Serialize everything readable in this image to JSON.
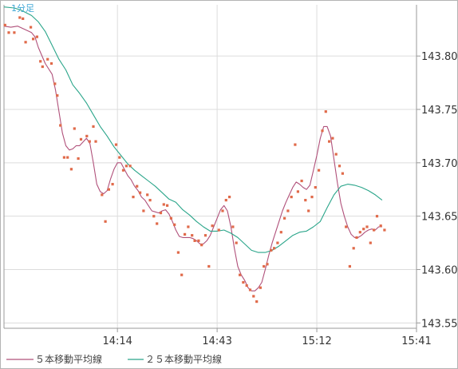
{
  "period_label": "1分足",
  "legend": [
    {
      "label": "５本移動平均線",
      "color": "#b0507a"
    },
    {
      "label": "２５本移動平均線",
      "color": "#2aa58a"
    }
  ],
  "colors": {
    "price_points": "#e06a4a",
    "period_label": "#3fa7d6"
  },
  "chart_data": {
    "type": "line",
    "x_tick_labels": [
      "14:14",
      "14:43",
      "15:12",
      "15:41"
    ],
    "x_tick_minutes": [
      33,
      62,
      91,
      120
    ],
    "x_range_minutes": [
      0,
      120
    ],
    "y_tick_labels": [
      "143.80",
      "143.75",
      "143.70",
      "143.65",
      "143.60",
      "143.55"
    ],
    "ylim": [
      143.545,
      143.848
    ],
    "grid": true,
    "legend_position": "bottom-left",
    "price_points": [
      [
        0.3,
        143.829
      ],
      [
        1.4,
        143.822
      ],
      [
        3.0,
        143.822
      ],
      [
        4.6,
        143.836
      ],
      [
        5.5,
        143.835
      ],
      [
        6.3,
        143.813
      ],
      [
        7.8,
        143.827
      ],
      [
        8.5,
        143.816
      ],
      [
        9.6,
        143.818
      ],
      [
        10.6,
        143.795
      ],
      [
        11.2,
        143.79
      ],
      [
        12.7,
        143.797
      ],
      [
        13.8,
        143.793
      ],
      [
        14.8,
        143.774
      ],
      [
        15.5,
        143.763
      ],
      [
        16.4,
        143.735
      ],
      [
        17.5,
        143.705
      ],
      [
        18.5,
        143.705
      ],
      [
        19.6,
        143.694
      ],
      [
        20.5,
        143.732
      ],
      [
        21.6,
        143.704
      ],
      [
        22.4,
        143.722
      ],
      [
        24.1,
        143.725
      ],
      [
        24.9,
        143.72
      ],
      [
        26.0,
        143.734
      ],
      [
        26.7,
        143.72
      ],
      [
        28.5,
        143.67
      ],
      [
        29.5,
        143.645
      ],
      [
        30.5,
        143.675
      ],
      [
        31.6,
        143.68
      ],
      [
        32.6,
        143.717
      ],
      [
        33.6,
        143.705
      ],
      [
        34.7,
        143.693
      ],
      [
        35.6,
        143.697
      ],
      [
        36.7,
        143.697
      ],
      [
        37.6,
        143.668
      ],
      [
        38.7,
        143.678
      ],
      [
        39.6,
        143.672
      ],
      [
        40.6,
        143.655
      ],
      [
        41.7,
        143.67
      ],
      [
        42.5,
        143.665
      ],
      [
        43.6,
        143.65
      ],
      [
        44.5,
        143.643
      ],
      [
        45.6,
        143.653
      ],
      [
        46.5,
        143.661
      ],
      [
        47.5,
        143.66
      ],
      [
        48.6,
        143.648
      ],
      [
        49.6,
        143.642
      ],
      [
        50.7,
        143.616
      ],
      [
        51.7,
        143.595
      ],
      [
        52.6,
        143.633
      ],
      [
        53.6,
        143.64
      ],
      [
        54.7,
        143.632
      ],
      [
        55.5,
        143.627
      ],
      [
        56.6,
        143.627
      ],
      [
        57.5,
        143.623
      ],
      [
        58.6,
        143.632
      ],
      [
        59.6,
        143.603
      ],
      [
        60.6,
        143.641
      ],
      [
        62.5,
        143.637
      ],
      [
        63.6,
        143.655
      ],
      [
        64.6,
        143.665
      ],
      [
        65.6,
        143.668
      ],
      [
        66.6,
        143.64
      ],
      [
        67.6,
        143.625
      ],
      [
        68.6,
        143.595
      ],
      [
        69.6,
        143.588
      ],
      [
        70.6,
        143.585
      ],
      [
        71.6,
        143.581
      ],
      [
        72.6,
        143.575
      ],
      [
        73.5,
        143.57
      ],
      [
        74.6,
        143.583
      ],
      [
        75.6,
        143.603
      ],
      [
        76.6,
        143.605
      ],
      [
        77.7,
        143.618
      ],
      [
        78.6,
        143.62
      ],
      [
        79.6,
        143.625
      ],
      [
        80.6,
        143.635
      ],
      [
        81.6,
        143.648
      ],
      [
        82.6,
        143.655
      ],
      [
        83.6,
        143.668
      ],
      [
        84.7,
        143.717
      ],
      [
        85.5,
        143.673
      ],
      [
        86.6,
        143.683
      ],
      [
        87.7,
        143.665
      ],
      [
        88.6,
        143.655
      ],
      [
        89.6,
        143.668
      ],
      [
        90.6,
        143.677
      ],
      [
        91.6,
        143.693
      ],
      [
        92.6,
        143.73
      ],
      [
        93.6,
        143.748
      ],
      [
        94.6,
        143.72
      ],
      [
        95.6,
        143.723
      ],
      [
        96.6,
        143.708
      ],
      [
        97.6,
        143.697
      ],
      [
        98.5,
        143.69
      ],
      [
        99.5,
        143.64
      ],
      [
        100.6,
        143.603
      ],
      [
        101.7,
        143.62
      ],
      [
        102.6,
        143.63
      ],
      [
        103.6,
        143.635
      ],
      [
        104.6,
        143.638
      ],
      [
        105.6,
        143.64
      ],
      [
        106.6,
        143.625
      ],
      [
        107.6,
        143.637
      ],
      [
        108.5,
        143.65
      ],
      [
        109.6,
        143.641
      ],
      [
        110.7,
        143.637
      ]
    ],
    "series": [
      {
        "name": "５本移動平均線",
        "values": [
          [
            0,
            143.828
          ],
          [
            2,
            143.827
          ],
          [
            4,
            143.828
          ],
          [
            6,
            143.825
          ],
          [
            8,
            143.822
          ],
          [
            9,
            143.818
          ],
          [
            10,
            143.808
          ],
          [
            12,
            143.793
          ],
          [
            14,
            143.783
          ],
          [
            15,
            143.768
          ],
          [
            16,
            143.748
          ],
          [
            17,
            143.728
          ],
          [
            18,
            143.716
          ],
          [
            19,
            143.712
          ],
          [
            20,
            143.713
          ],
          [
            21,
            143.716
          ],
          [
            22,
            143.716
          ],
          [
            24,
            143.723
          ],
          [
            25,
            143.718
          ],
          [
            26,
            143.7
          ],
          [
            27,
            143.68
          ],
          [
            28,
            143.673
          ],
          [
            29,
            143.671
          ],
          [
            30,
            143.674
          ],
          [
            31,
            143.685
          ],
          [
            32,
            143.694
          ],
          [
            33,
            143.7
          ],
          [
            34,
            143.7
          ],
          [
            35,
            143.694
          ],
          [
            36,
            143.688
          ],
          [
            37,
            143.684
          ],
          [
            38,
            143.678
          ],
          [
            39,
            143.674
          ],
          [
            40,
            143.668
          ],
          [
            41,
            143.665
          ],
          [
            42,
            143.66
          ],
          [
            43,
            143.655
          ],
          [
            44,
            143.654
          ],
          [
            45,
            143.653
          ],
          [
            46,
            143.655
          ],
          [
            47,
            143.656
          ],
          [
            48,
            143.652
          ],
          [
            49,
            143.645
          ],
          [
            50,
            143.637
          ],
          [
            51,
            143.631
          ],
          [
            52,
            143.63
          ],
          [
            53,
            143.63
          ],
          [
            54,
            143.63
          ],
          [
            55,
            143.629
          ],
          [
            56,
            143.627
          ],
          [
            57,
            143.624
          ],
          [
            58,
            143.624
          ],
          [
            59,
            143.627
          ],
          [
            60,
            143.632
          ],
          [
            61,
            143.64
          ],
          [
            62,
            143.648
          ],
          [
            63,
            143.656
          ],
          [
            64,
            143.66
          ],
          [
            65,
            143.655
          ],
          [
            66,
            143.64
          ],
          [
            67,
            143.62
          ],
          [
            68,
            143.603
          ],
          [
            69,
            143.595
          ],
          [
            70,
            143.59
          ],
          [
            71,
            143.583
          ],
          [
            72,
            143.58
          ],
          [
            73,
            143.58
          ],
          [
            74,
            143.583
          ],
          [
            75,
            143.588
          ],
          [
            76,
            143.6
          ],
          [
            77,
            143.613
          ],
          [
            78,
            143.625
          ],
          [
            79,
            143.635
          ],
          [
            80,
            143.645
          ],
          [
            81,
            143.655
          ],
          [
            82,
            143.663
          ],
          [
            83,
            143.67
          ],
          [
            84,
            143.677
          ],
          [
            85,
            143.682
          ],
          [
            86,
            143.68
          ],
          [
            87,
            143.677
          ],
          [
            88,
            143.675
          ],
          [
            89,
            143.679
          ],
          [
            90,
            143.693
          ],
          [
            91,
            143.707
          ],
          [
            92,
            143.723
          ],
          [
            93,
            143.734
          ],
          [
            94,
            143.734
          ],
          [
            95,
            143.725
          ],
          [
            96,
            143.703
          ],
          [
            97,
            143.681
          ],
          [
            98,
            143.662
          ],
          [
            99,
            143.65
          ],
          [
            100,
            143.64
          ],
          [
            101,
            143.633
          ],
          [
            102,
            143.63
          ],
          [
            103,
            143.63
          ],
          [
            104,
            143.632
          ],
          [
            105,
            143.635
          ],
          [
            106,
            143.637
          ],
          [
            107,
            143.638
          ],
          [
            108,
            143.637
          ],
          [
            109,
            143.64
          ],
          [
            110,
            143.64
          ]
        ]
      },
      {
        "name": "２５本移動平均線",
        "values": [
          [
            0,
            143.846
          ],
          [
            3,
            143.845
          ],
          [
            5,
            143.843
          ],
          [
            8,
            143.838
          ],
          [
            10,
            143.832
          ],
          [
            12,
            143.823
          ],
          [
            14,
            143.81
          ],
          [
            16,
            143.797
          ],
          [
            18,
            143.787
          ],
          [
            20,
            143.773
          ],
          [
            22,
            143.765
          ],
          [
            24,
            143.756
          ],
          [
            26,
            143.745
          ],
          [
            28,
            143.734
          ],
          [
            30,
            143.725
          ],
          [
            32,
            143.715
          ],
          [
            34,
            143.707
          ],
          [
            36,
            143.699
          ],
          [
            38,
            143.693
          ],
          [
            40,
            143.688
          ],
          [
            42,
            143.683
          ],
          [
            44,
            143.678
          ],
          [
            46,
            143.672
          ],
          [
            48,
            143.666
          ],
          [
            50,
            143.663
          ],
          [
            52,
            143.656
          ],
          [
            54,
            143.651
          ],
          [
            56,
            143.645
          ],
          [
            58,
            143.64
          ],
          [
            60,
            143.636
          ],
          [
            62,
            143.636
          ],
          [
            64,
            143.637
          ],
          [
            66,
            143.634
          ],
          [
            68,
            143.63
          ],
          [
            70,
            143.624
          ],
          [
            72,
            143.618
          ],
          [
            74,
            143.616
          ],
          [
            76,
            143.616
          ],
          [
            78,
            143.618
          ],
          [
            80,
            143.622
          ],
          [
            82,
            143.627
          ],
          [
            84,
            143.632
          ],
          [
            86,
            143.635
          ],
          [
            88,
            143.636
          ],
          [
            90,
            143.64
          ],
          [
            92,
            143.645
          ],
          [
            94,
            143.658
          ],
          [
            96,
            143.67
          ],
          [
            98,
            143.678
          ],
          [
            100,
            143.68
          ],
          [
            102,
            143.679
          ],
          [
            104,
            143.677
          ],
          [
            106,
            143.674
          ],
          [
            108,
            143.67
          ],
          [
            110,
            143.665
          ]
        ]
      }
    ]
  }
}
